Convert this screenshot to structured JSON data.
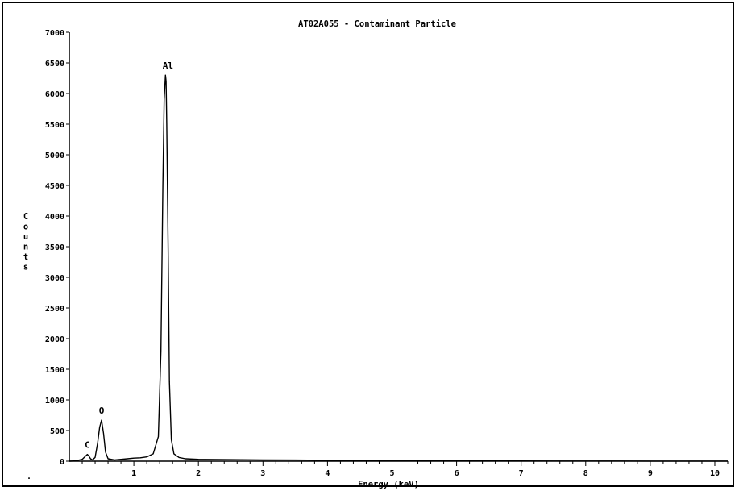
{
  "chart_data": {
    "type": "line",
    "title": "AT02A055 - Contaminant Particle",
    "xlabel": "Energy (keV)",
    "ylabel": "Counts",
    "xlim": [
      0,
      10.2
    ],
    "ylim": [
      0,
      7000
    ],
    "x_ticks": [
      1,
      2,
      3,
      4,
      5,
      6,
      7,
      8,
      9,
      10
    ],
    "y_ticks": [
      0,
      500,
      1000,
      1500,
      2000,
      2500,
      3000,
      3500,
      4000,
      4500,
      5000,
      5500,
      6000,
      6500,
      7000
    ],
    "grid": false,
    "series": [
      {
        "x": [
          0.0,
          0.1,
          0.2,
          0.25,
          0.28,
          0.3,
          0.33,
          0.36,
          0.4,
          0.44,
          0.47,
          0.5,
          0.53,
          0.56,
          0.6,
          0.7,
          0.8,
          0.9,
          1.0,
          1.1,
          1.2,
          1.3,
          1.38,
          1.42,
          1.45,
          1.47,
          1.49,
          1.5,
          1.51,
          1.53,
          1.55,
          1.58,
          1.62,
          1.7,
          1.8,
          2.0,
          2.5,
          3.0,
          3.5,
          4.0,
          4.5,
          5.0,
          5.5,
          6.0,
          6.5,
          7.0,
          7.5,
          8.0,
          8.5,
          9.0,
          9.5,
          10.0,
          10.2
        ],
        "y": [
          0,
          5,
          30,
          80,
          110,
          90,
          40,
          20,
          60,
          300,
          550,
          670,
          450,
          150,
          40,
          20,
          30,
          40,
          50,
          55,
          70,
          120,
          400,
          1800,
          4500,
          5900,
          6300,
          6200,
          5500,
          3500,
          1300,
          350,
          120,
          60,
          40,
          30,
          25,
          20,
          18,
          15,
          12,
          10,
          8,
          6,
          5,
          4,
          3,
          2,
          2,
          1,
          1,
          1,
          1
        ]
      }
    ],
    "annotations": [
      {
        "text": "C",
        "x": 0.28,
        "y": 110
      },
      {
        "text": "O",
        "x": 0.5,
        "y": 670
      },
      {
        "text": "Al",
        "x": 1.49,
        "y": 6300
      }
    ]
  },
  "corner_mark": "."
}
